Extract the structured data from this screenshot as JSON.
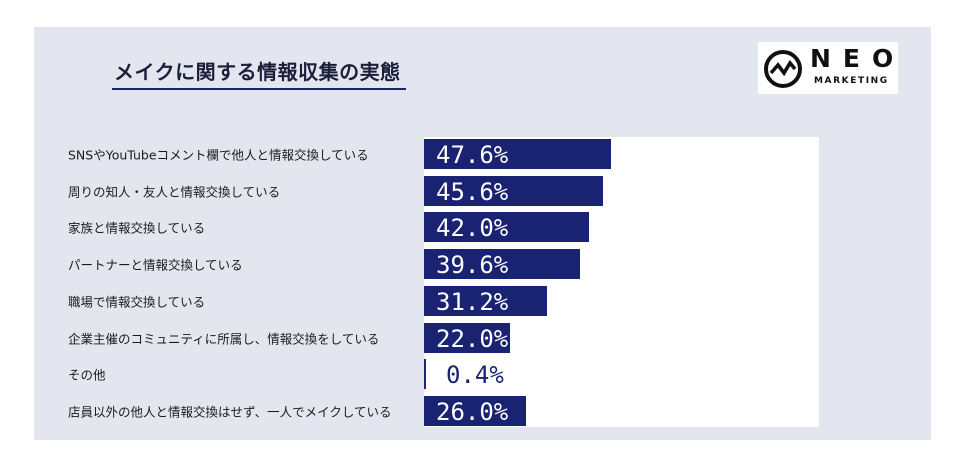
{
  "header": {
    "title": "メイクに関する情報収集の実態"
  },
  "logo": {
    "word": "NEO",
    "sub": "MARKETING"
  },
  "colors": {
    "bar": "#1a2372",
    "panel": "#e3e6ef",
    "plot_bg": "#ffffff",
    "value_text_on_bar": "#ffffff"
  },
  "chart_data": {
    "type": "bar",
    "orientation": "horizontal",
    "title": "メイクに関する情報収集の実態",
    "xlim": [
      0,
      100
    ],
    "categories": [
      "SNSやYouTubeコメント欄で他人と情報交換している",
      "周りの知人・友人と情報交換している",
      "家族と情報交換している",
      "パートナーと情報交換している",
      "職場で情報交換している",
      "企業主催のコミュニティに所属し、情報交換をしている",
      "その他",
      "店員以外の他人と情報交換はせず、一人でメイクしている"
    ],
    "values": [
      47.6,
      45.6,
      42.0,
      39.6,
      31.2,
      22.0,
      0.4,
      26.0
    ],
    "value_labels": [
      "47.6%",
      "45.6%",
      "42.0%",
      "39.6%",
      "31.2%",
      "22.0%",
      "0.4%",
      "26.0%"
    ],
    "grid": false,
    "legend": "none"
  }
}
